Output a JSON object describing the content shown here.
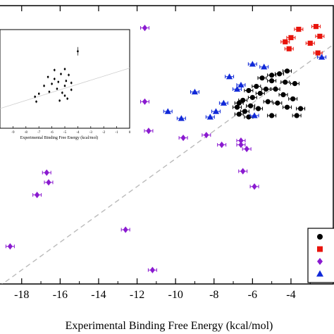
{
  "chart_data": [
    {
      "type": "scatter",
      "xlabel": "Experimental Binding Free Energy (kcal/mol)",
      "ylabel": "",
      "xlim": [
        -19.2,
        -1.8
      ],
      "ylim": [
        -19.0,
        1.0
      ],
      "x_ticks": [
        -18,
        -16,
        -14,
        -12,
        -10,
        -8,
        -6,
        -4
      ],
      "x_tick_labels": [
        "-18",
        "-16",
        "-14",
        "-12",
        "-10",
        "-8",
        "-6",
        "-4"
      ],
      "grid": false,
      "legend_position": "bottom-right",
      "diagonal_line": {
        "style": "dashed",
        "color": "#bbbbbb"
      },
      "series": [
        {
          "marker": "circle",
          "color": "#000000",
          "points": [
            {
              "x": -4.2,
              "y": -3.7
            },
            {
              "x": -4.6,
              "y": -3.9
            },
            {
              "x": -5.0,
              "y": -4.0
            },
            {
              "x": -5.5,
              "y": -4.2
            },
            {
              "x": -5.0,
              "y": -4.4
            },
            {
              "x": -4.3,
              "y": -4.5
            },
            {
              "x": -3.8,
              "y": -4.6
            },
            {
              "x": -5.8,
              "y": -4.8
            },
            {
              "x": -5.3,
              "y": -5.0
            },
            {
              "x": -4.8,
              "y": -5.0
            },
            {
              "x": -6.2,
              "y": -5.1
            },
            {
              "x": -5.6,
              "y": -5.3
            },
            {
              "x": -4.4,
              "y": -5.4
            },
            {
              "x": -6.0,
              "y": -5.6
            },
            {
              "x": -3.9,
              "y": -5.7
            },
            {
              "x": -6.5,
              "y": -5.8
            },
            {
              "x": -5.2,
              "y": -5.9
            },
            {
              "x": -4.7,
              "y": -6.0
            },
            {
              "x": -6.7,
              "y": -6.0
            },
            {
              "x": -6.1,
              "y": -6.2
            },
            {
              "x": -4.2,
              "y": -6.3
            },
            {
              "x": -5.7,
              "y": -6.4
            },
            {
              "x": -6.4,
              "y": -6.6
            },
            {
              "x": -6.7,
              "y": -6.8
            },
            {
              "x": -5.0,
              "y": -6.9
            },
            {
              "x": -3.5,
              "y": -6.4
            },
            {
              "x": -6.2,
              "y": -7.0
            },
            {
              "x": -3.7,
              "y": -6.9
            },
            {
              "x": -6.8,
              "y": -6.3
            }
          ]
        },
        {
          "marker": "square",
          "color": "#e8140c",
          "points": [
            {
              "x": -2.7,
              "y": -0.5
            },
            {
              "x": -3.6,
              "y": -0.7
            },
            {
              "x": -4.0,
              "y": -1.3
            },
            {
              "x": -2.5,
              "y": -1.2
            },
            {
              "x": -4.3,
              "y": -1.6
            },
            {
              "x": -3.0,
              "y": -1.7
            },
            {
              "x": -2.6,
              "y": -2.4
            },
            {
              "x": -4.1,
              "y": -2.1
            }
          ]
        },
        {
          "marker": "diamond",
          "color": "#8a1ad0",
          "points": [
            {
              "x": -11.6,
              "y": -0.6
            },
            {
              "x": -11.6,
              "y": -5.9
            },
            {
              "x": -11.4,
              "y": -8.0
            },
            {
              "x": -9.6,
              "y": -8.5
            },
            {
              "x": -8.4,
              "y": -8.3
            },
            {
              "x": -7.6,
              "y": -9.0
            },
            {
              "x": -6.6,
              "y": -8.7
            },
            {
              "x": -6.6,
              "y": -9.0
            },
            {
              "x": -6.3,
              "y": -9.3
            },
            {
              "x": -6.5,
              "y": -10.9
            },
            {
              "x": -5.9,
              "y": -12.0
            },
            {
              "x": -16.7,
              "y": -11.0
            },
            {
              "x": -16.6,
              "y": -11.7
            },
            {
              "x": -17.2,
              "y": -12.6
            },
            {
              "x": -12.6,
              "y": -15.1
            },
            {
              "x": -18.6,
              "y": -16.3
            },
            {
              "x": -11.2,
              "y": -18.0
            }
          ]
        },
        {
          "marker": "triangle",
          "color": "#1029d8",
          "points": [
            {
              "x": -2.4,
              "y": -2.7
            },
            {
              "x": -6.0,
              "y": -3.2
            },
            {
              "x": -5.4,
              "y": -3.4
            },
            {
              "x": -7.2,
              "y": -4.1
            },
            {
              "x": -6.8,
              "y": -5.0
            },
            {
              "x": -6.6,
              "y": -4.7
            },
            {
              "x": -9.0,
              "y": -5.2
            },
            {
              "x": -7.5,
              "y": -6.0
            },
            {
              "x": -10.4,
              "y": -6.6
            },
            {
              "x": -7.9,
              "y": -6.6
            },
            {
              "x": -9.7,
              "y": -7.1
            },
            {
              "x": -8.2,
              "y": -7.0
            },
            {
              "x": -5.9,
              "y": -6.9
            }
          ]
        }
      ]
    },
    {
      "type": "scatter",
      "xlabel": "Experimental Binding Free Energy (kcal/mol)",
      "xlim": [
        -10,
        0
      ],
      "ylim": [
        -10,
        0
      ],
      "x_ticks": [
        -9,
        -8,
        -7,
        -6,
        -5,
        -4,
        -3,
        -2,
        -1,
        0
      ],
      "x_tick_labels": [
        "-9",
        "-8",
        "-7",
        "-6",
        "-5",
        "-4",
        "-3",
        "-2",
        "-1",
        "0"
      ],
      "position": "top-left inset",
      "points": [
        {
          "x": -4.0,
          "y": -2.2
        },
        {
          "x": -5.0,
          "y": -4.0
        },
        {
          "x": -5.8,
          "y": -4.1
        },
        {
          "x": -5.3,
          "y": -4.5
        },
        {
          "x": -4.7,
          "y": -4.6
        },
        {
          "x": -6.3,
          "y": -4.8
        },
        {
          "x": -5.8,
          "y": -5.0
        },
        {
          "x": -4.9,
          "y": -5.2
        },
        {
          "x": -5.5,
          "y": -5.3
        },
        {
          "x": -4.5,
          "y": -5.4
        },
        {
          "x": -6.0,
          "y": -5.5
        },
        {
          "x": -5.0,
          "y": -5.7
        },
        {
          "x": -6.6,
          "y": -5.7
        },
        {
          "x": -5.6,
          "y": -6.0
        },
        {
          "x": -4.5,
          "y": -6.1
        },
        {
          "x": -6.2,
          "y": -6.3
        },
        {
          "x": -5.2,
          "y": -6.4
        },
        {
          "x": -7.0,
          "y": -6.5
        },
        {
          "x": -5.0,
          "y": -6.7
        },
        {
          "x": -7.3,
          "y": -6.8
        },
        {
          "x": -4.8,
          "y": -7.0
        },
        {
          "x": -7.2,
          "y": -7.3
        },
        {
          "x": -5.4,
          "y": -7.2
        }
      ]
    }
  ],
  "legend": {
    "entries": [
      {
        "marker": "circle",
        "color": "#000000"
      },
      {
        "marker": "square",
        "color": "#e8140c"
      },
      {
        "marker": "diamond",
        "color": "#8a1ad0"
      },
      {
        "marker": "triangle",
        "color": "#1029d8"
      }
    ]
  }
}
